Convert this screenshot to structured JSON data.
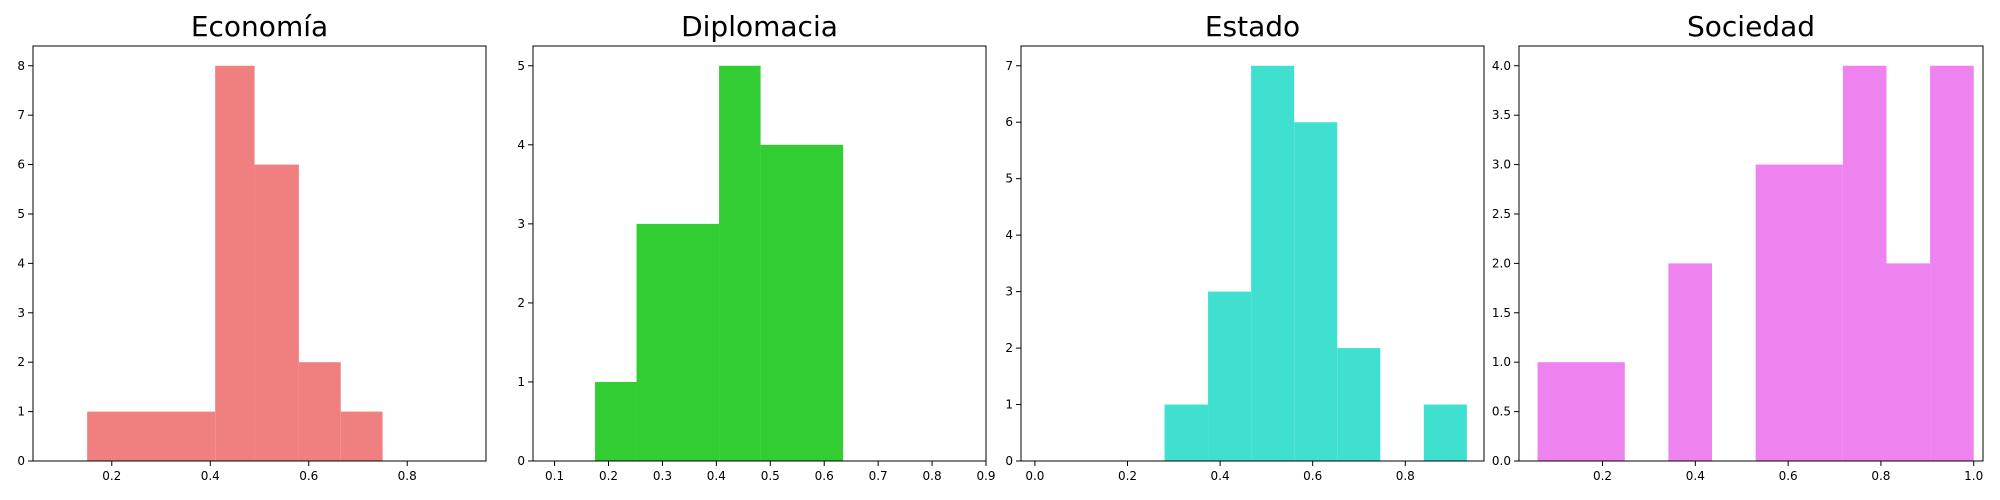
{
  "chart_data": [
    {
      "type": "bar",
      "title": "Economía",
      "color": "#f08080",
      "xlim": [
        0.04,
        0.96
      ],
      "ylim": [
        0,
        8.4
      ],
      "xticks": [
        0.2,
        0.4,
        0.6,
        0.8
      ],
      "xtick_labels": [
        "0.2",
        "0.4",
        "0.6",
        "0.8"
      ],
      "yticks": [
        0,
        1,
        2,
        3,
        4,
        5,
        6,
        7,
        8
      ],
      "ytick_labels": [
        "0",
        "1",
        "2",
        "3",
        "4",
        "5",
        "6",
        "7",
        "8"
      ],
      "bins": [
        {
          "x0": 0.15,
          "x1": 0.41,
          "count": 1
        },
        {
          "x0": 0.41,
          "x1": 0.49,
          "count": 8
        },
        {
          "x0": 0.49,
          "x1": 0.58,
          "count": 6
        },
        {
          "x0": 0.58,
          "x1": 0.665,
          "count": 2
        },
        {
          "x0": 0.665,
          "x1": 0.75,
          "count": 1
        }
      ]
    },
    {
      "type": "bar",
      "title": "Diplomacia",
      "color": "#32cd32",
      "xlim": [
        0.06,
        0.9
      ],
      "ylim": [
        0,
        5.25
      ],
      "xticks": [
        0.1,
        0.2,
        0.3,
        0.4,
        0.5,
        0.6,
        0.7,
        0.8,
        0.9
      ],
      "xtick_labels": [
        "0.1",
        "0.2",
        "0.3",
        "0.4",
        "0.5",
        "0.6",
        "0.7",
        "0.8",
        "0.9"
      ],
      "yticks": [
        0,
        1,
        2,
        3,
        4,
        5
      ],
      "ytick_labels": [
        "0",
        "1",
        "2",
        "3",
        "4",
        "5"
      ],
      "bins": [
        {
          "x0": 0.175,
          "x1": 0.252,
          "count": 1
        },
        {
          "x0": 0.252,
          "x1": 0.405,
          "count": 3
        },
        {
          "x0": 0.405,
          "x1": 0.482,
          "count": 5
        },
        {
          "x0": 0.482,
          "x1": 0.635,
          "count": 4
        }
      ]
    },
    {
      "type": "bar",
      "title": "Estado",
      "color": "#40e0d0",
      "xlim": [
        -0.03,
        0.97
      ],
      "ylim": [
        0,
        7.35
      ],
      "xticks": [
        0.0,
        0.2,
        0.4,
        0.6,
        0.8
      ],
      "xtick_labels": [
        "0.0",
        "0.2",
        "0.4",
        "0.6",
        "0.8"
      ],
      "yticks": [
        0,
        1,
        2,
        3,
        4,
        5,
        6,
        7
      ],
      "ytick_labels": [
        "0",
        "1",
        "2",
        "3",
        "4",
        "5",
        "6",
        "7"
      ],
      "bins": [
        {
          "x0": 0.28,
          "x1": 0.374,
          "count": 1
        },
        {
          "x0": 0.374,
          "x1": 0.467,
          "count": 3
        },
        {
          "x0": 0.467,
          "x1": 0.56,
          "count": 7
        },
        {
          "x0": 0.56,
          "x1": 0.653,
          "count": 6
        },
        {
          "x0": 0.653,
          "x1": 0.746,
          "count": 2
        },
        {
          "x0": 0.84,
          "x1": 0.933,
          "count": 1
        }
      ]
    },
    {
      "type": "bar",
      "title": "Sociedad",
      "color": "#ee82ee",
      "xlim": [
        0.02,
        1.02
      ],
      "ylim": [
        0,
        4.2
      ],
      "xticks": [
        0.2,
        0.4,
        0.6,
        0.8,
        1.0
      ],
      "xtick_labels": [
        "0.2",
        "0.4",
        "0.6",
        "0.8",
        "1.0"
      ],
      "yticks": [
        0.0,
        0.5,
        1.0,
        1.5,
        2.0,
        2.5,
        3.0,
        3.5,
        4.0
      ],
      "ytick_labels": [
        "0.0",
        "0.5",
        "1.0",
        "1.5",
        "2.0",
        "2.5",
        "3.0",
        "3.5",
        "4.0"
      ],
      "bins": [
        {
          "x0": 0.06,
          "x1": 0.248,
          "count": 1
        },
        {
          "x0": 0.342,
          "x1": 0.436,
          "count": 2
        },
        {
          "x0": 0.53,
          "x1": 0.718,
          "count": 3
        },
        {
          "x0": 0.718,
          "x1": 0.812,
          "count": 4
        },
        {
          "x0": 0.812,
          "x1": 0.906,
          "count": 2
        },
        {
          "x0": 0.906,
          "x1": 1.0,
          "count": 4
        }
      ]
    }
  ]
}
